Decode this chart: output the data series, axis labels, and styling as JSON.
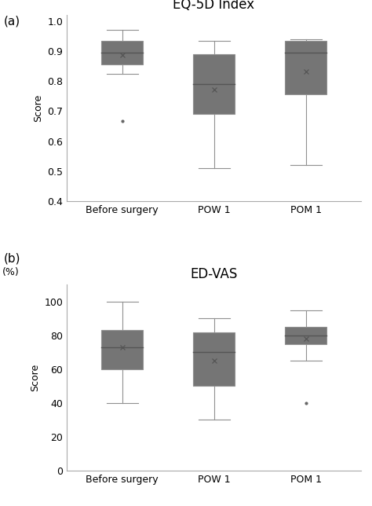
{
  "panel_a": {
    "title": "EQ-5D Index",
    "ylabel": "Score",
    "ylim": [
      0.4,
      1.02
    ],
    "yticks": [
      0.4,
      0.5,
      0.6,
      0.7,
      0.8,
      0.9,
      1.0
    ],
    "categories": [
      "Before surgery",
      "POW 1",
      "POM 1"
    ],
    "boxes": [
      {
        "q1": 0.855,
        "median": 0.895,
        "q3": 0.935,
        "whislo": 0.825,
        "whishi": 0.97,
        "mean": 0.888,
        "fliers": [
          0.668
        ]
      },
      {
        "q1": 0.69,
        "median": 0.79,
        "q3": 0.89,
        "whislo": 0.51,
        "whishi": 0.935,
        "mean": 0.773,
        "fliers": []
      },
      {
        "q1": 0.755,
        "median": 0.895,
        "q3": 0.935,
        "whislo": 0.52,
        "whishi": 0.94,
        "mean": 0.833,
        "fliers": []
      }
    ]
  },
  "panel_b": {
    "title": "ED-VAS",
    "ylabel": "Score",
    "ylabel2": "(%)",
    "ylim": [
      0,
      110
    ],
    "yticks": [
      0,
      20,
      40,
      60,
      80,
      100
    ],
    "categories": [
      "Before surgery",
      "POW 1",
      "POM 1"
    ],
    "boxes": [
      {
        "q1": 60,
        "median": 73,
        "q3": 83,
        "whislo": 40,
        "whishi": 100,
        "mean": 73,
        "fliers": []
      },
      {
        "q1": 50,
        "median": 70,
        "q3": 82,
        "whislo": 30,
        "whishi": 90,
        "mean": 65,
        "fliers": []
      },
      {
        "q1": 75,
        "median": 80,
        "q3": 85,
        "whislo": 65,
        "whishi": 95,
        "mean": 78,
        "fliers": [
          40
        ]
      }
    ]
  },
  "box_color": "#757575",
  "median_color": "#555555",
  "whisker_color": "#909090",
  "flier_color": "#666666",
  "mean_color": "#555555",
  "box_width": 0.45,
  "label_a": "(a)",
  "label_b": "(b)"
}
